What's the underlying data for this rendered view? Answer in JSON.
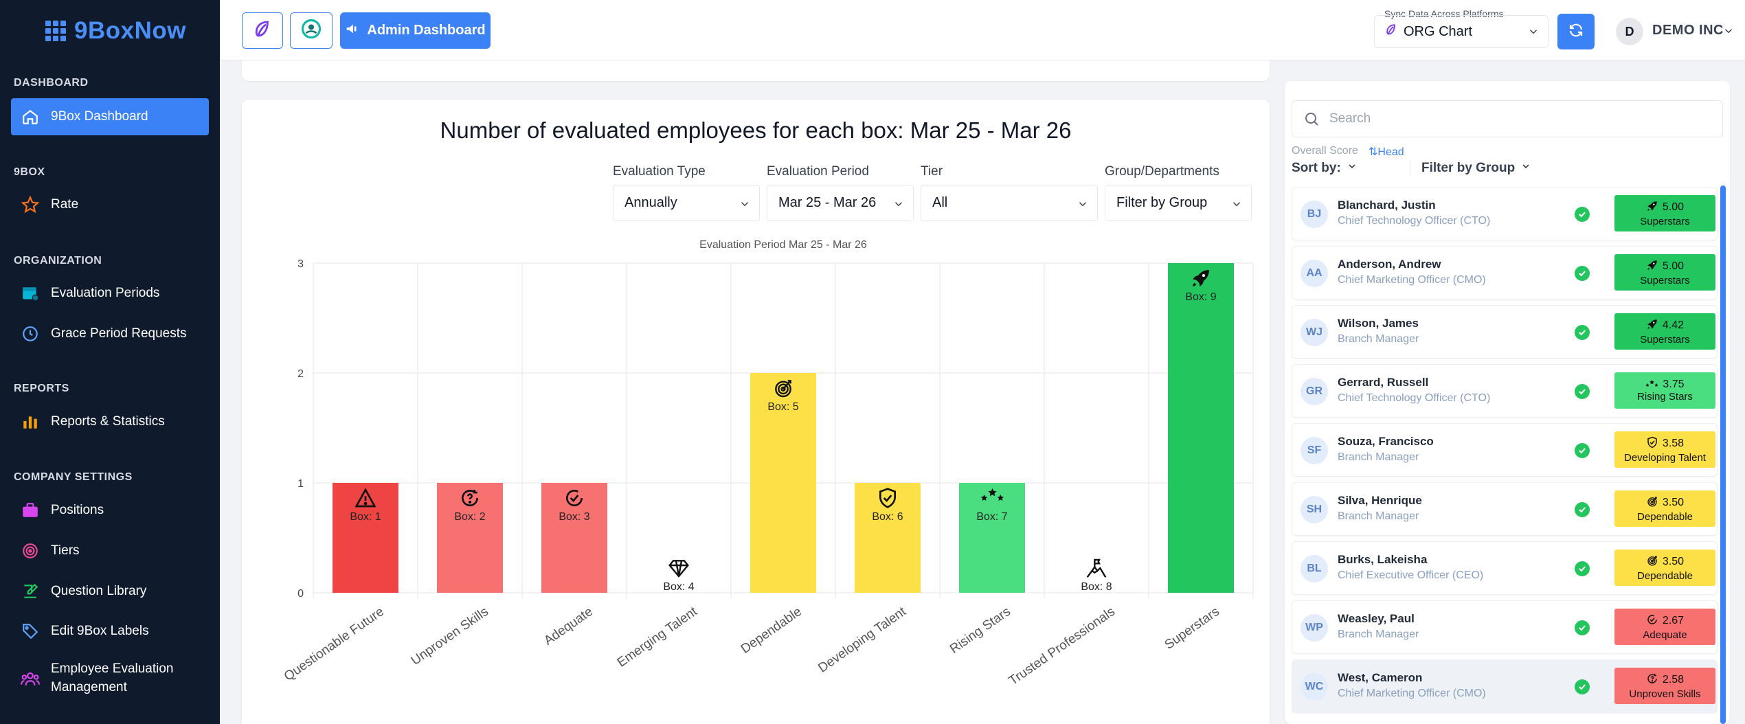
{
  "sidebar": {
    "brand": "9BoxNow",
    "sections": [
      {
        "title": "DASHBOARD"
      },
      {
        "title": "9BOX"
      },
      {
        "title": "ORGANIZATION"
      },
      {
        "title": "REPORTS"
      },
      {
        "title": "COMPANY SETTINGS"
      }
    ],
    "items": [
      {
        "label": "9Box Dashboard",
        "icon": "home-icon",
        "active": true
      },
      {
        "label": "Rate",
        "icon": "star-icon"
      },
      {
        "label": "Evaluation Periods",
        "icon": "calendar-icon"
      },
      {
        "label": "Grace Period Requests",
        "icon": "timer-icon"
      },
      {
        "label": "Reports & Statistics",
        "icon": "bar-chart-icon"
      },
      {
        "label": "Positions",
        "icon": "briefcase-icon"
      },
      {
        "label": "Tiers",
        "icon": "target-icon"
      },
      {
        "label": "Question Library",
        "icon": "edit-icon"
      },
      {
        "label": "Edit 9Box Labels",
        "icon": "tag-icon"
      },
      {
        "label": "Employee Evaluation Management",
        "icon": "users-icon"
      }
    ]
  },
  "topbar": {
    "admin_label": "Admin Dashboard",
    "sync_label": "Sync Data Across Platforms",
    "sync_value": "ORG Chart",
    "avatar_letter": "D",
    "org_name": "DEMO INC"
  },
  "main": {
    "title": "Number of evaluated employees for each box: Mar 25 - Mar 26",
    "filters": [
      {
        "label": "Evaluation Type",
        "value": "Annually"
      },
      {
        "label": "Evaluation Period",
        "value": "Mar 25 - Mar 26"
      },
      {
        "label": "Tier",
        "value": "All"
      },
      {
        "label": "Group/Departments",
        "value": "Filter by Group"
      }
    ]
  },
  "chart_data": {
    "type": "bar",
    "title": "Evaluation Period  Mar 25 - Mar 26",
    "categories": [
      "Questionable Future",
      "Unproven Skills",
      "Adequate",
      "Emerging Talent",
      "Dependable",
      "Developing Talent",
      "Rising Stars",
      "Trusted Professionals",
      "Superstars"
    ],
    "values": [
      1,
      1,
      1,
      0,
      2,
      1,
      1,
      0,
      3
    ],
    "box_labels": [
      "Box: 1",
      "Box: 2",
      "Box: 3",
      "Box: 4",
      "Box: 5",
      "Box: 6",
      "Box: 7",
      "Box: 8",
      "Box: 9"
    ],
    "colors": [
      "#ef4444",
      "#f87171",
      "#f87171",
      "#ffffff",
      "#fde047",
      "#fde047",
      "#4ade80",
      "#ffffff",
      "#22c55e"
    ],
    "icons": [
      "warning-icon",
      "question-refresh-icon",
      "check-circle-icon",
      "diamond-icon",
      "target-icon",
      "shield-check-icon",
      "stars-icon",
      "mountain-flag-icon",
      "rocket-icon"
    ],
    "ylim": [
      0,
      3
    ],
    "yticks": [
      "0",
      "1",
      "2",
      "3"
    ],
    "grid": true
  },
  "panel": {
    "search_placeholder": "Search",
    "score_label": "Overall Score",
    "head_label": "Head",
    "sort_label": "Sort by:",
    "filter_label": "Filter by Group",
    "employees": [
      {
        "initials": "BJ",
        "name": "Blanchard, Justin",
        "title": "Chief Technology Officer (CTO)",
        "score": "5.00",
        "label": "Superstars",
        "color": "#22c55e",
        "icon": "rocket-icon"
      },
      {
        "initials": "AA",
        "name": "Anderson, Andrew",
        "title": "Chief Marketing Officer (CMO)",
        "score": "5.00",
        "label": "Superstars",
        "color": "#22c55e",
        "icon": "rocket-icon"
      },
      {
        "initials": "WJ",
        "name": "Wilson, James",
        "title": "Branch Manager",
        "score": "4.42",
        "label": "Superstars",
        "color": "#22c55e",
        "icon": "rocket-icon"
      },
      {
        "initials": "GR",
        "name": "Gerrard, Russell",
        "title": "Chief Technology Officer (CTO)",
        "score": "3.75",
        "label": "Rising Stars",
        "color": "#4ade80",
        "icon": "stars-icon"
      },
      {
        "initials": "SF",
        "name": "Souza, Francisco",
        "title": "Branch Manager",
        "score": "3.58",
        "label": "Developing Talent",
        "color": "#fde047",
        "icon": "shield-check-icon"
      },
      {
        "initials": "SH",
        "name": "Silva, Henrique",
        "title": "Branch Manager",
        "score": "3.50",
        "label": "Dependable",
        "color": "#fde047",
        "icon": "target-icon"
      },
      {
        "initials": "BL",
        "name": "Burks, Lakeisha",
        "title": "Chief Executive Officer (CEO)",
        "score": "3.50",
        "label": "Dependable",
        "color": "#fde047",
        "icon": "target-icon"
      },
      {
        "initials": "WP",
        "name": "Weasley, Paul",
        "title": "Branch Manager",
        "score": "2.67",
        "label": "Adequate",
        "color": "#f87171",
        "icon": "check-circle-icon"
      },
      {
        "initials": "WC",
        "name": "West, Cameron",
        "title": "Chief Marketing Officer (CMO)",
        "score": "2.58",
        "label": "Unproven Skills",
        "color": "#f87171",
        "icon": "question-refresh-icon"
      }
    ]
  }
}
